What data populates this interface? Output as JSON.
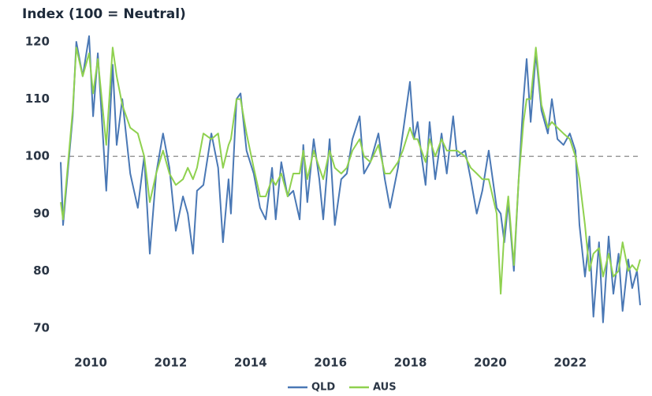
{
  "chart_data": {
    "type": "line",
    "y_label": "Index (100 = Neutral)",
    "x": [
      2009.25,
      2009.31,
      2009.55,
      2009.64,
      2009.8,
      2009.96,
      2010.06,
      2010.18,
      2010.39,
      2010.55,
      2010.65,
      2010.79,
      2010.99,
      2011.18,
      2011.34,
      2011.48,
      2011.64,
      2011.81,
      2011.97,
      2012.13,
      2012.31,
      2012.43,
      2012.56,
      2012.66,
      2012.82,
      2013.02,
      2013.19,
      2013.31,
      2013.45,
      2013.51,
      2013.65,
      2013.75,
      2013.9,
      2014.08,
      2014.24,
      2014.38,
      2014.54,
      2014.63,
      2014.77,
      2014.93,
      2015.07,
      2015.23,
      2015.32,
      2015.42,
      2015.58,
      2015.72,
      2015.82,
      2015.98,
      2016.11,
      2016.27,
      2016.41,
      2016.55,
      2016.73,
      2016.84,
      2017.0,
      2017.2,
      2017.36,
      2017.49,
      2017.69,
      2017.81,
      2017.99,
      2018.09,
      2018.18,
      2018.28,
      2018.38,
      2018.48,
      2018.62,
      2018.78,
      2018.91,
      2019.07,
      2019.17,
      2019.37,
      2019.51,
      2019.66,
      2019.8,
      2019.96,
      2020.16,
      2020.26,
      2020.35,
      2020.45,
      2020.59,
      2020.71,
      2020.83,
      2020.91,
      2021.01,
      2021.14,
      2021.28,
      2021.44,
      2021.54,
      2021.68,
      2021.83,
      2021.99,
      2022.13,
      2022.23,
      2022.37,
      2022.48,
      2022.58,
      2022.72,
      2022.82,
      2022.96,
      2023.08,
      2023.21,
      2023.31,
      2023.45,
      2023.55,
      2023.67,
      2023.75
    ],
    "series": [
      {
        "name": "QLD",
        "color": "#4a78b5",
        "values": [
          99,
          88,
          107,
          120,
          114,
          121,
          107,
          118,
          94,
          116,
          102,
          110,
          97,
          91,
          100,
          83,
          97,
          104,
          98,
          87,
          93,
          90,
          83,
          94,
          95,
          104,
          98,
          85,
          96,
          90,
          110,
          111,
          101,
          97,
          91,
          89,
          98,
          89,
          99,
          93,
          94,
          89,
          102,
          92,
          103,
          96,
          89,
          103,
          88,
          96,
          97,
          103,
          107,
          97,
          99,
          104,
          96,
          91,
          98,
          104,
          113,
          103,
          106,
          100,
          95,
          106,
          96,
          104,
          97,
          107,
          100,
          101,
          96,
          90,
          94,
          101,
          91,
          90,
          85,
          92,
          80,
          96,
          110,
          117,
          106,
          118,
          108,
          104,
          110,
          103,
          102,
          104,
          101,
          88,
          79,
          86,
          72,
          85,
          71,
          86,
          76,
          83,
          73,
          82,
          77,
          80,
          74
        ]
      },
      {
        "name": "AUS",
        "color": "#8fd14f",
        "values": [
          92,
          89,
          108,
          119,
          114,
          118,
          111,
          117,
          102,
          119,
          114,
          109,
          105,
          104,
          100,
          92,
          97,
          101,
          97,
          95,
          96,
          98,
          96,
          98,
          104,
          103,
          104,
          98,
          102,
          103,
          110,
          110,
          104,
          98,
          93,
          93,
          96,
          95,
          97,
          93,
          97,
          97,
          101,
          96,
          101,
          98,
          96,
          101,
          98,
          97,
          98,
          101,
          103,
          100,
          99,
          102,
          97,
          97,
          99,
          101,
          105,
          103,
          103,
          101,
          99,
          103,
          100,
          103,
          101,
          101,
          101,
          100,
          98,
          97,
          96,
          96,
          90,
          76,
          87,
          93,
          81,
          96,
          106,
          110,
          110,
          119,
          109,
          105,
          106,
          105,
          104,
          103,
          100,
          96,
          88,
          80,
          83,
          84,
          79,
          83,
          79,
          80,
          85,
          80,
          81,
          80,
          82
        ]
      }
    ],
    "xlim": [
      2009.25,
      2023.75
    ],
    "xticks": [
      2010,
      2012,
      2014,
      2016,
      2018,
      2020,
      2022
    ],
    "ylim": [
      68,
      122
    ],
    "yticks": [
      70,
      80,
      90,
      100,
      110,
      120
    ],
    "reference_line": 100,
    "grid": false,
    "legend": "bottom"
  }
}
